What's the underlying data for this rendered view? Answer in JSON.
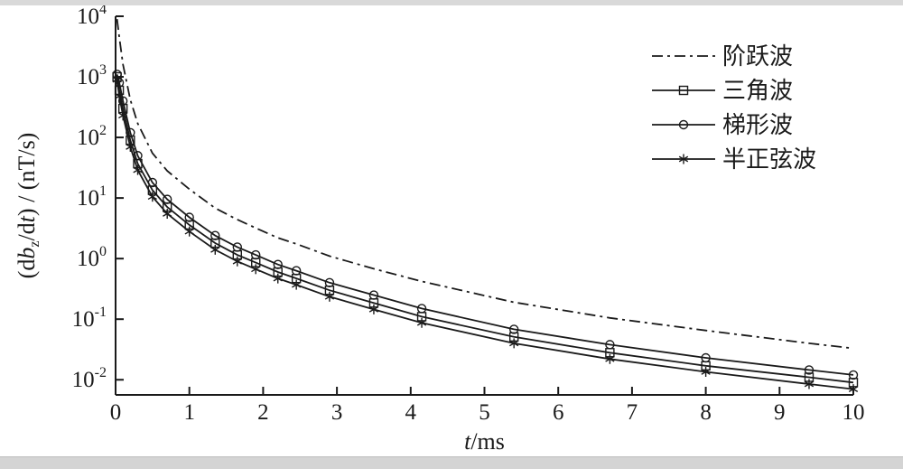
{
  "page": {
    "background": "#ffffff",
    "top_bar_color": "#d9d9d9",
    "bottom_bar_color": "#d4d4d4"
  },
  "chart_data": {
    "type": "line",
    "title": "",
    "xlabel": "t/ms",
    "xlabel_parts": [
      {
        "text": "t",
        "italic": true
      },
      {
        "text": "/ms",
        "italic": false
      }
    ],
    "ylabel": "(dbz/dt) / (nT/s)",
    "ylabel_parts": [
      {
        "text": "(d",
        "italic": false
      },
      {
        "text": "b",
        "italic": true
      },
      {
        "text": "z",
        "sub": true
      },
      {
        "text": "/d",
        "italic": false
      },
      {
        "text": "t",
        "italic": true
      },
      {
        "text": ")  /  (nT/s)",
        "italic": false
      }
    ],
    "xlim": [
      0,
      10
    ],
    "x_ticks": [
      0,
      1,
      2,
      3,
      4,
      5,
      6,
      7,
      8,
      9,
      10
    ],
    "y_scale": "log",
    "y_tick_exponents": [
      4,
      3,
      2,
      1,
      0,
      -1,
      -2
    ],
    "ylim_exponents": [
      -2.25,
      4
    ],
    "grid": false,
    "line_color": "#1a1a1a",
    "legend_position": "top-right",
    "x": [
      0.02,
      0.05,
      0.1,
      0.2,
      0.3,
      0.5,
      0.7,
      1.0,
      1.35,
      1.65,
      1.9,
      2.2,
      2.45,
      2.9,
      3.5,
      4.15,
      5.4,
      6.7,
      8.0,
      9.4,
      10.0
    ],
    "series": [
      {
        "name": "阶跃波",
        "line": "dashdot",
        "marker": "none",
        "values": [
          9000,
          4500,
          1600,
          420,
          170,
          55,
          28,
          14,
          6.8,
          4.4,
          3.2,
          2.2,
          1.75,
          1.1,
          0.68,
          0.42,
          0.19,
          0.105,
          0.065,
          0.04,
          0.033
        ]
      },
      {
        "name": "三角波",
        "line": "solid",
        "marker": "square",
        "values": [
          1000,
          600,
          300,
          90,
          37,
          13.5,
          7.1,
          3.6,
          1.8,
          1.15,
          0.86,
          0.6,
          0.47,
          0.3,
          0.185,
          0.11,
          0.051,
          0.028,
          0.017,
          0.011,
          0.009
        ]
      },
      {
        "name": "梯形波",
        "line": "solid",
        "marker": "circle",
        "values": [
          1100,
          800,
          400,
          120,
          50,
          18,
          9.5,
          4.8,
          2.4,
          1.55,
          1.15,
          0.8,
          0.63,
          0.4,
          0.25,
          0.15,
          0.068,
          0.038,
          0.023,
          0.0145,
          0.012
        ]
      },
      {
        "name": "半正弦波",
        "line": "solid",
        "marker": "asterisk",
        "values": [
          900,
          480,
          230,
          70,
          29,
          10.5,
          5.5,
          2.8,
          1.4,
          0.9,
          0.67,
          0.47,
          0.37,
          0.235,
          0.145,
          0.087,
          0.04,
          0.022,
          0.0135,
          0.0085,
          0.007
        ]
      }
    ]
  }
}
